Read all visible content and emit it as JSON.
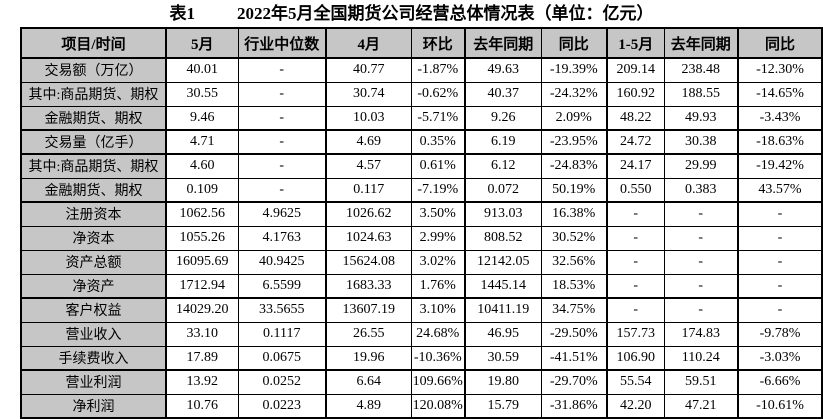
{
  "title": {
    "label": "表1",
    "text": "2022年5月全国期货公司经营总体情况表（单位：亿元）"
  },
  "colors": {
    "header_bg": "#c6c6c6",
    "border": "#000000"
  },
  "table": {
    "headers": [
      "项目/时间",
      "5月",
      "行业中位数",
      "4月",
      "环比",
      "去年同期",
      "同比",
      "1-5月",
      "去年同期",
      "同比"
    ],
    "rows": [
      {
        "label": "交易额（万亿）",
        "values": [
          "40.01",
          "-",
          "40.77",
          "-1.87%",
          "49.63",
          "-19.39%",
          "209.14",
          "238.48",
          "-12.30%"
        ]
      },
      {
        "label": "其中:商品期货、期权",
        "values": [
          "30.55",
          "-",
          "30.74",
          "-0.62%",
          "40.37",
          "-24.32%",
          "160.92",
          "188.55",
          "-14.65%"
        ]
      },
      {
        "label": "金融期货、期权",
        "values": [
          "9.46",
          "-",
          "10.03",
          "-5.71%",
          "9.26",
          "2.09%",
          "48.22",
          "49.93",
          "-3.43%"
        ]
      },
      {
        "label": "交易量（亿手）",
        "values": [
          "4.71",
          "-",
          "4.69",
          "0.35%",
          "6.19",
          "-23.95%",
          "24.72",
          "30.38",
          "-18.63%"
        ]
      },
      {
        "label": "其中:商品期货、期权",
        "values": [
          "4.60",
          "-",
          "4.57",
          "0.61%",
          "6.12",
          "-24.83%",
          "24.17",
          "29.99",
          "-19.42%"
        ]
      },
      {
        "label": "金融期货、期权",
        "values": [
          "0.109",
          "-",
          "0.117",
          "-7.19%",
          "0.072",
          "50.19%",
          "0.550",
          "0.383",
          "43.57%"
        ]
      },
      {
        "label": "注册资本",
        "values": [
          "1062.56",
          "4.9625",
          "1026.62",
          "3.50%",
          "913.03",
          "16.38%",
          "-",
          "-",
          "-"
        ]
      },
      {
        "label": "净资本",
        "values": [
          "1055.26",
          "4.1763",
          "1024.63",
          "2.99%",
          "808.52",
          "30.52%",
          "-",
          "-",
          "-"
        ]
      },
      {
        "label": "资产总额",
        "values": [
          "16095.69",
          "40.9425",
          "15624.08",
          "3.02%",
          "12142.05",
          "32.56%",
          "-",
          "-",
          "-"
        ]
      },
      {
        "label": "净资产",
        "values": [
          "1712.94",
          "6.5599",
          "1683.33",
          "1.76%",
          "1445.14",
          "18.53%",
          "-",
          "-",
          "-"
        ]
      },
      {
        "label": "客户权益",
        "values": [
          "14029.20",
          "33.5655",
          "13607.19",
          "3.10%",
          "10411.19",
          "34.75%",
          "-",
          "-",
          "-"
        ]
      },
      {
        "label": "营业收入",
        "values": [
          "33.10",
          "0.1117",
          "26.55",
          "24.68%",
          "46.95",
          "-29.50%",
          "157.73",
          "174.83",
          "-9.78%"
        ]
      },
      {
        "label": "手续费收入",
        "values": [
          "17.89",
          "0.0675",
          "19.96",
          "-10.36%",
          "30.59",
          "-41.51%",
          "106.90",
          "110.24",
          "-3.03%"
        ]
      },
      {
        "label": "营业利润",
        "values": [
          "13.92",
          "0.0252",
          "6.64",
          "109.66%",
          "19.80",
          "-29.70%",
          "55.54",
          "59.51",
          "-6.66%"
        ]
      },
      {
        "label": "净利润",
        "values": [
          "10.76",
          "0.0223",
          "4.89",
          "120.08%",
          "15.79",
          "-31.86%",
          "42.20",
          "47.21",
          "-10.61%"
        ]
      }
    ]
  }
}
